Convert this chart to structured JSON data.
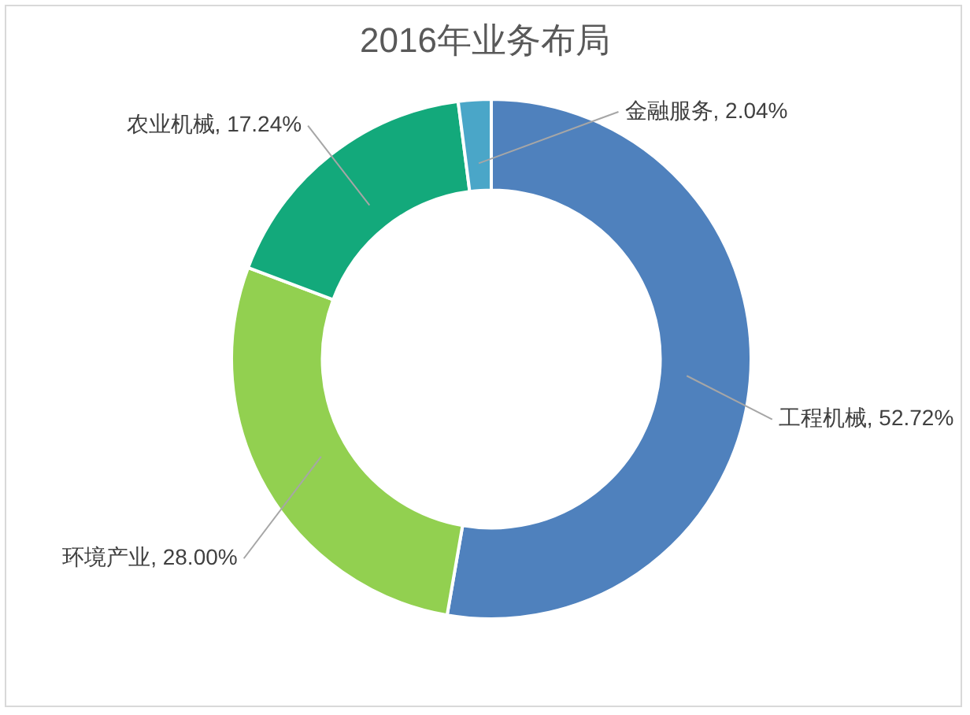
{
  "chart_data": {
    "type": "donut",
    "title": "2016年业务布局",
    "categories": [
      "工程机械",
      "环境产业",
      "农业机械",
      "金融服务"
    ],
    "values": [
      52.72,
      28.0,
      17.24,
      2.04
    ],
    "colors": [
      "#4f81bd",
      "#92d050",
      "#13a97b",
      "#4aa6c8"
    ],
    "value_labels": [
      "52.72%",
      "28.00%",
      "17.24%",
      "2.04%"
    ]
  }
}
